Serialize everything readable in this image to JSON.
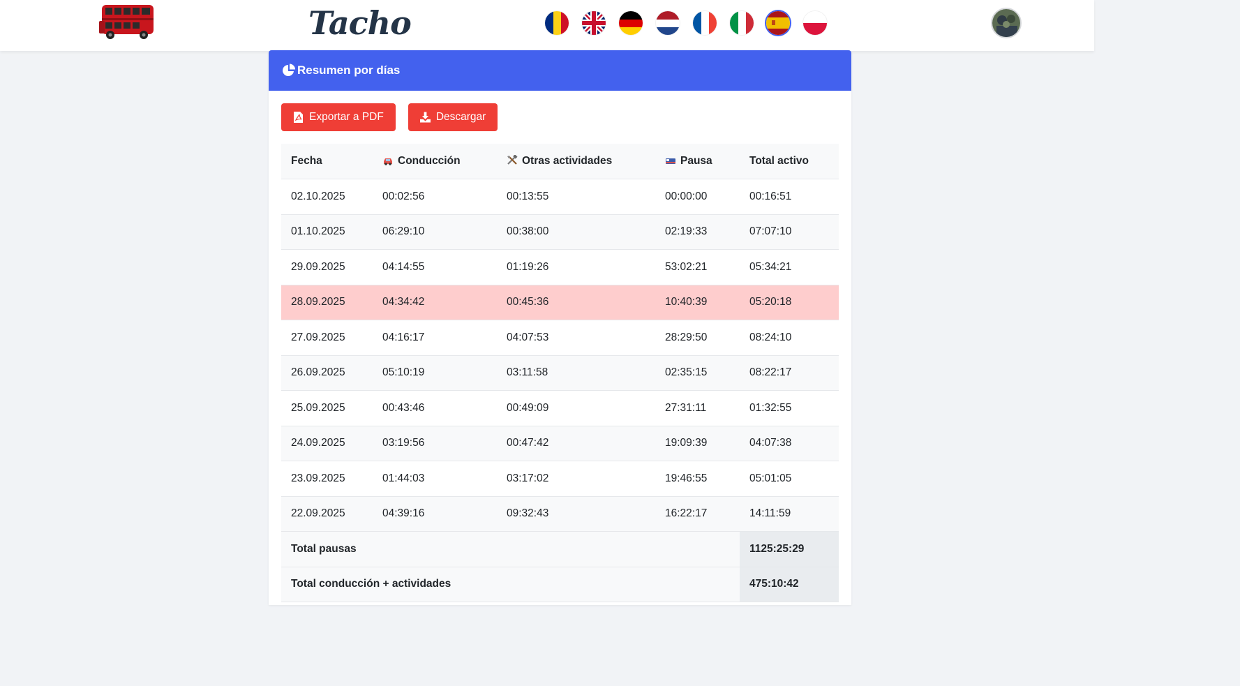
{
  "brand": "Tacho",
  "languages": [
    "Română",
    "English",
    "Deutsch",
    "Nederlands",
    "Français",
    "Italiano",
    "Español",
    "Polski"
  ],
  "card": {
    "title": "Resumen por días"
  },
  "buttons": {
    "export_pdf": "Exportar a PDF",
    "download": "Descargar"
  },
  "table": {
    "headers": [
      "Fecha",
      "Conducción",
      "Otras actividades",
      "Pausa",
      "Total activo"
    ],
    "rows": [
      [
        "02.10.2025",
        "00:02:56",
        "00:13:55",
        "00:00:00",
        "00:16:51"
      ],
      [
        "01.10.2025",
        "06:29:10",
        "00:38:00",
        "02:19:33",
        "07:07:10"
      ],
      [
        "29.09.2025",
        "04:14:55",
        "01:19:26",
        "53:02:21",
        "05:34:21"
      ],
      [
        "28.09.2025",
        "04:34:42",
        "00:45:36",
        "10:40:39",
        "05:20:18"
      ],
      [
        "27.09.2025",
        "04:16:17",
        "04:07:53",
        "28:29:50",
        "08:24:10"
      ],
      [
        "26.09.2025",
        "05:10:19",
        "03:11:58",
        "02:35:15",
        "08:22:17"
      ],
      [
        "25.09.2025",
        "00:43:46",
        "00:49:09",
        "27:31:11",
        "01:32:55"
      ],
      [
        "24.09.2025",
        "03:19:56",
        "00:47:42",
        "19:09:39",
        "04:07:38"
      ],
      [
        "23.09.2025",
        "01:44:03",
        "03:17:02",
        "19:46:55",
        "05:01:05"
      ],
      [
        "22.09.2025",
        "04:39:16",
        "09:32:43",
        "16:22:17",
        "14:11:59"
      ]
    ],
    "highlight_color": "#fecdcd",
    "totals": [
      {
        "label": "Total pausas",
        "value": "1125:25:29"
      },
      {
        "label": "Total conducción + actividades",
        "value": "475:10:42"
      }
    ]
  },
  "colors": {
    "header": "#4361ee",
    "button": "#ef3e36"
  }
}
